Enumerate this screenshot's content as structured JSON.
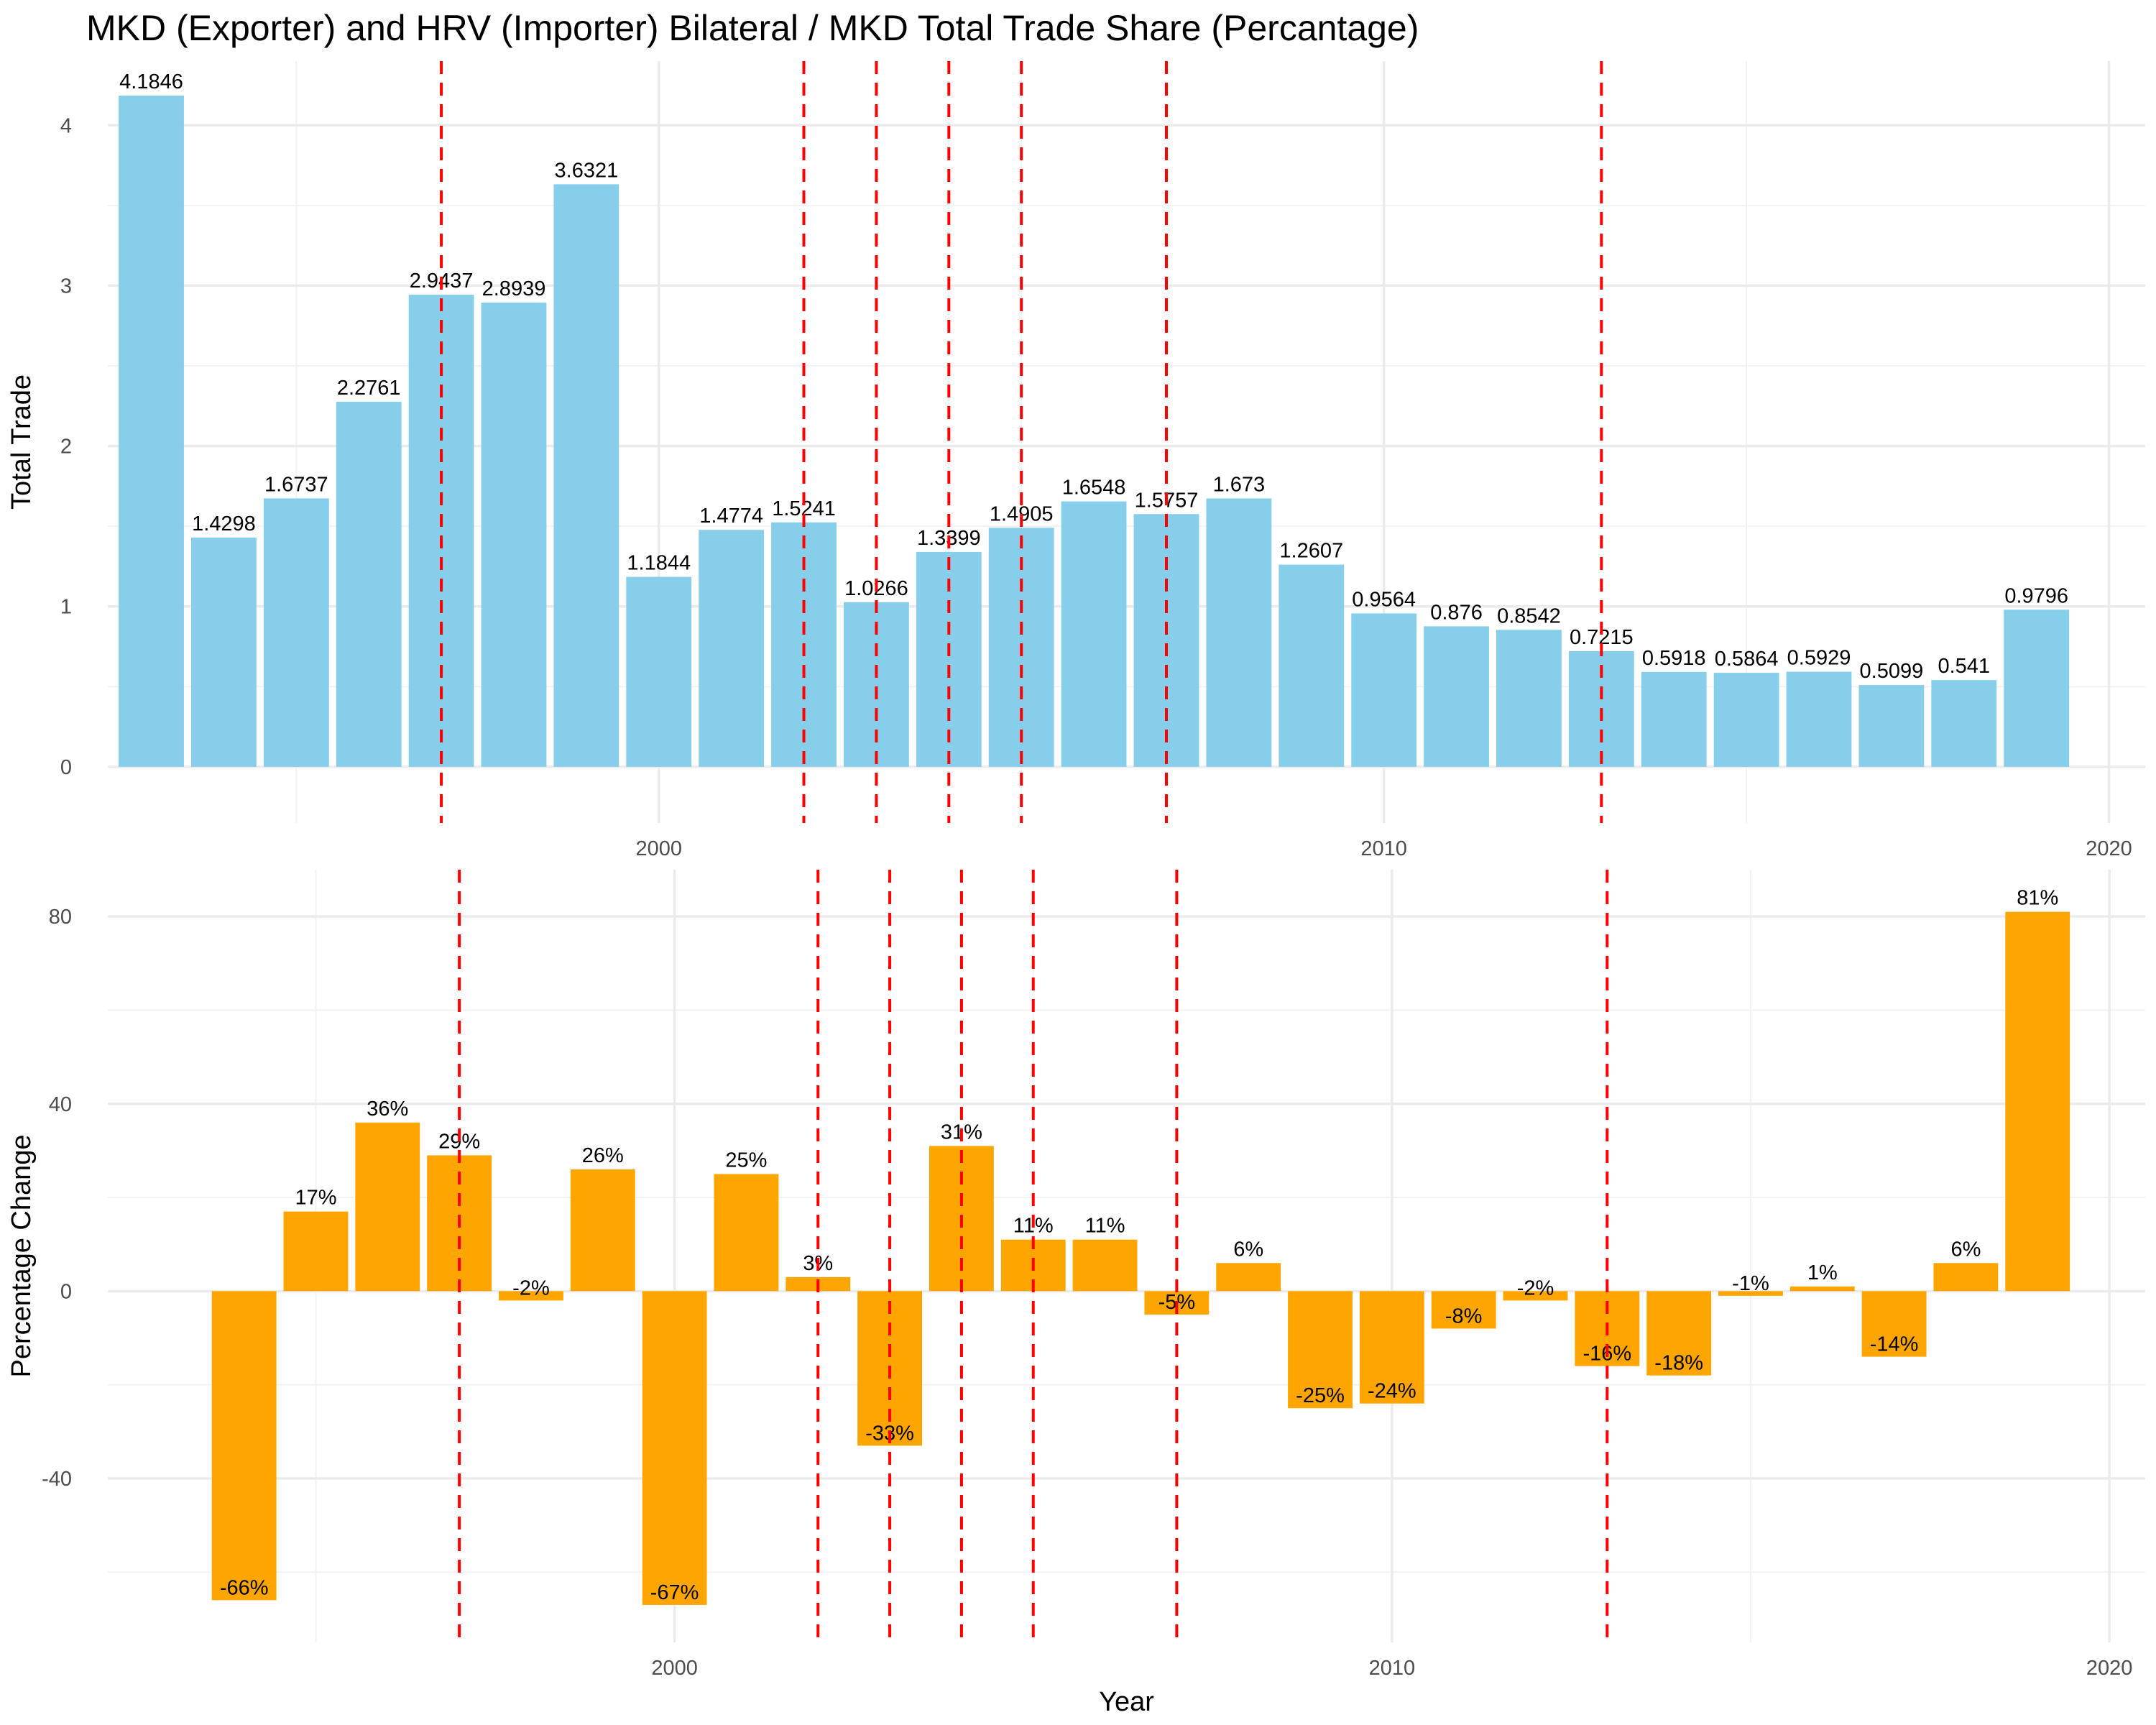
{
  "title": "MKD (Exporter) and HRV (Importer) Bilateral /  MKD Total Trade Share (Percantage)",
  "colors": {
    "top_bar": "#87CEEB",
    "bottom_bar": "#FFA500",
    "event_line": "#FF0000"
  },
  "chart_data": [
    {
      "type": "bar",
      "xlabel": "",
      "ylabel": "Total Trade",
      "x": [
        1993,
        1994,
        1995,
        1996,
        1997,
        1998,
        1999,
        2000,
        2001,
        2002,
        2003,
        2004,
        2005,
        2006,
        2007,
        2008,
        2009,
        2010,
        2011,
        2012,
        2013,
        2014,
        2015,
        2016,
        2017,
        2018,
        2019
      ],
      "values": [
        4.1846,
        1.4298,
        1.6737,
        2.2761,
        2.9437,
        2.8939,
        3.6321,
        1.1844,
        1.4774,
        1.5241,
        1.0266,
        1.3399,
        1.4905,
        1.6548,
        1.5757,
        1.673,
        1.2607,
        0.9564,
        0.876,
        0.8542,
        0.7215,
        0.5918,
        0.5864,
        0.5929,
        0.5099,
        0.541,
        0.9796
      ],
      "labels": [
        "4.1846",
        "1.4298",
        "1.6737",
        "2.2761",
        "2.9437",
        "2.8939",
        "3.6321",
        "1.1844",
        "1.4774",
        "1.5241",
        "1.0266",
        "1.3399",
        "1.4905",
        "1.6548",
        "1.5757",
        "1.673",
        "1.2607",
        "0.9564",
        "0.876",
        "0.8542",
        "0.7215",
        "0.5918",
        "0.5864",
        "0.5929",
        "0.5099",
        "0.541",
        "0.9796"
      ],
      "xlim": [
        1992.4,
        2020.5
      ],
      "ylim": [
        -0.35,
        4.4
      ],
      "x_ticks": [
        2000,
        2010,
        2020
      ],
      "x_tick_labels": [
        "2000",
        "2010",
        "2020"
      ],
      "y_ticks": [
        0,
        1,
        2,
        3,
        4
      ],
      "y_tick_labels": [
        "0",
        "1",
        "2",
        "3",
        "4"
      ],
      "vlines": [
        1997,
        2002,
        2003,
        2004,
        2005,
        2007,
        2013
      ],
      "grid": true
    },
    {
      "type": "bar",
      "xlabel": "Year",
      "ylabel": "Percentage Change",
      "x": [
        1994,
        1995,
        1996,
        1997,
        1998,
        1999,
        2000,
        2001,
        2002,
        2003,
        2004,
        2005,
        2006,
        2007,
        2008,
        2009,
        2010,
        2011,
        2012,
        2013,
        2014,
        2015,
        2016,
        2017,
        2018,
        2019
      ],
      "values": [
        -66,
        17,
        36,
        29,
        -2,
        26,
        -67,
        25,
        3,
        -33,
        31,
        11,
        11,
        -5,
        6,
        -25,
        -24,
        -8,
        -2,
        -16,
        -18,
        -1,
        1,
        -14,
        6,
        81
      ],
      "labels": [
        "-66%",
        "17%",
        "36%",
        "29%",
        "-2%",
        "26%",
        "-67%",
        "25%",
        "3%",
        "-33%",
        "31%",
        "11%",
        "11%",
        "-5%",
        "6%",
        "-25%",
        "-24%",
        "-8%",
        "-2%",
        "-16%",
        "-18%",
        "-1%",
        "1%",
        "-14%",
        "6%",
        "81%"
      ],
      "xlim": [
        1992.1,
        2020.5
      ],
      "ylim": [
        -75,
        90
      ],
      "x_ticks": [
        2000,
        2010,
        2020
      ],
      "x_tick_labels": [
        "2000",
        "2010",
        "2020"
      ],
      "y_ticks": [
        -40,
        0,
        40,
        80
      ],
      "y_tick_labels": [
        "-40",
        "0",
        "40",
        "80"
      ],
      "vlines": [
        1997,
        2002,
        2003,
        2004,
        2005,
        2007,
        2013
      ],
      "grid": true
    }
  ]
}
